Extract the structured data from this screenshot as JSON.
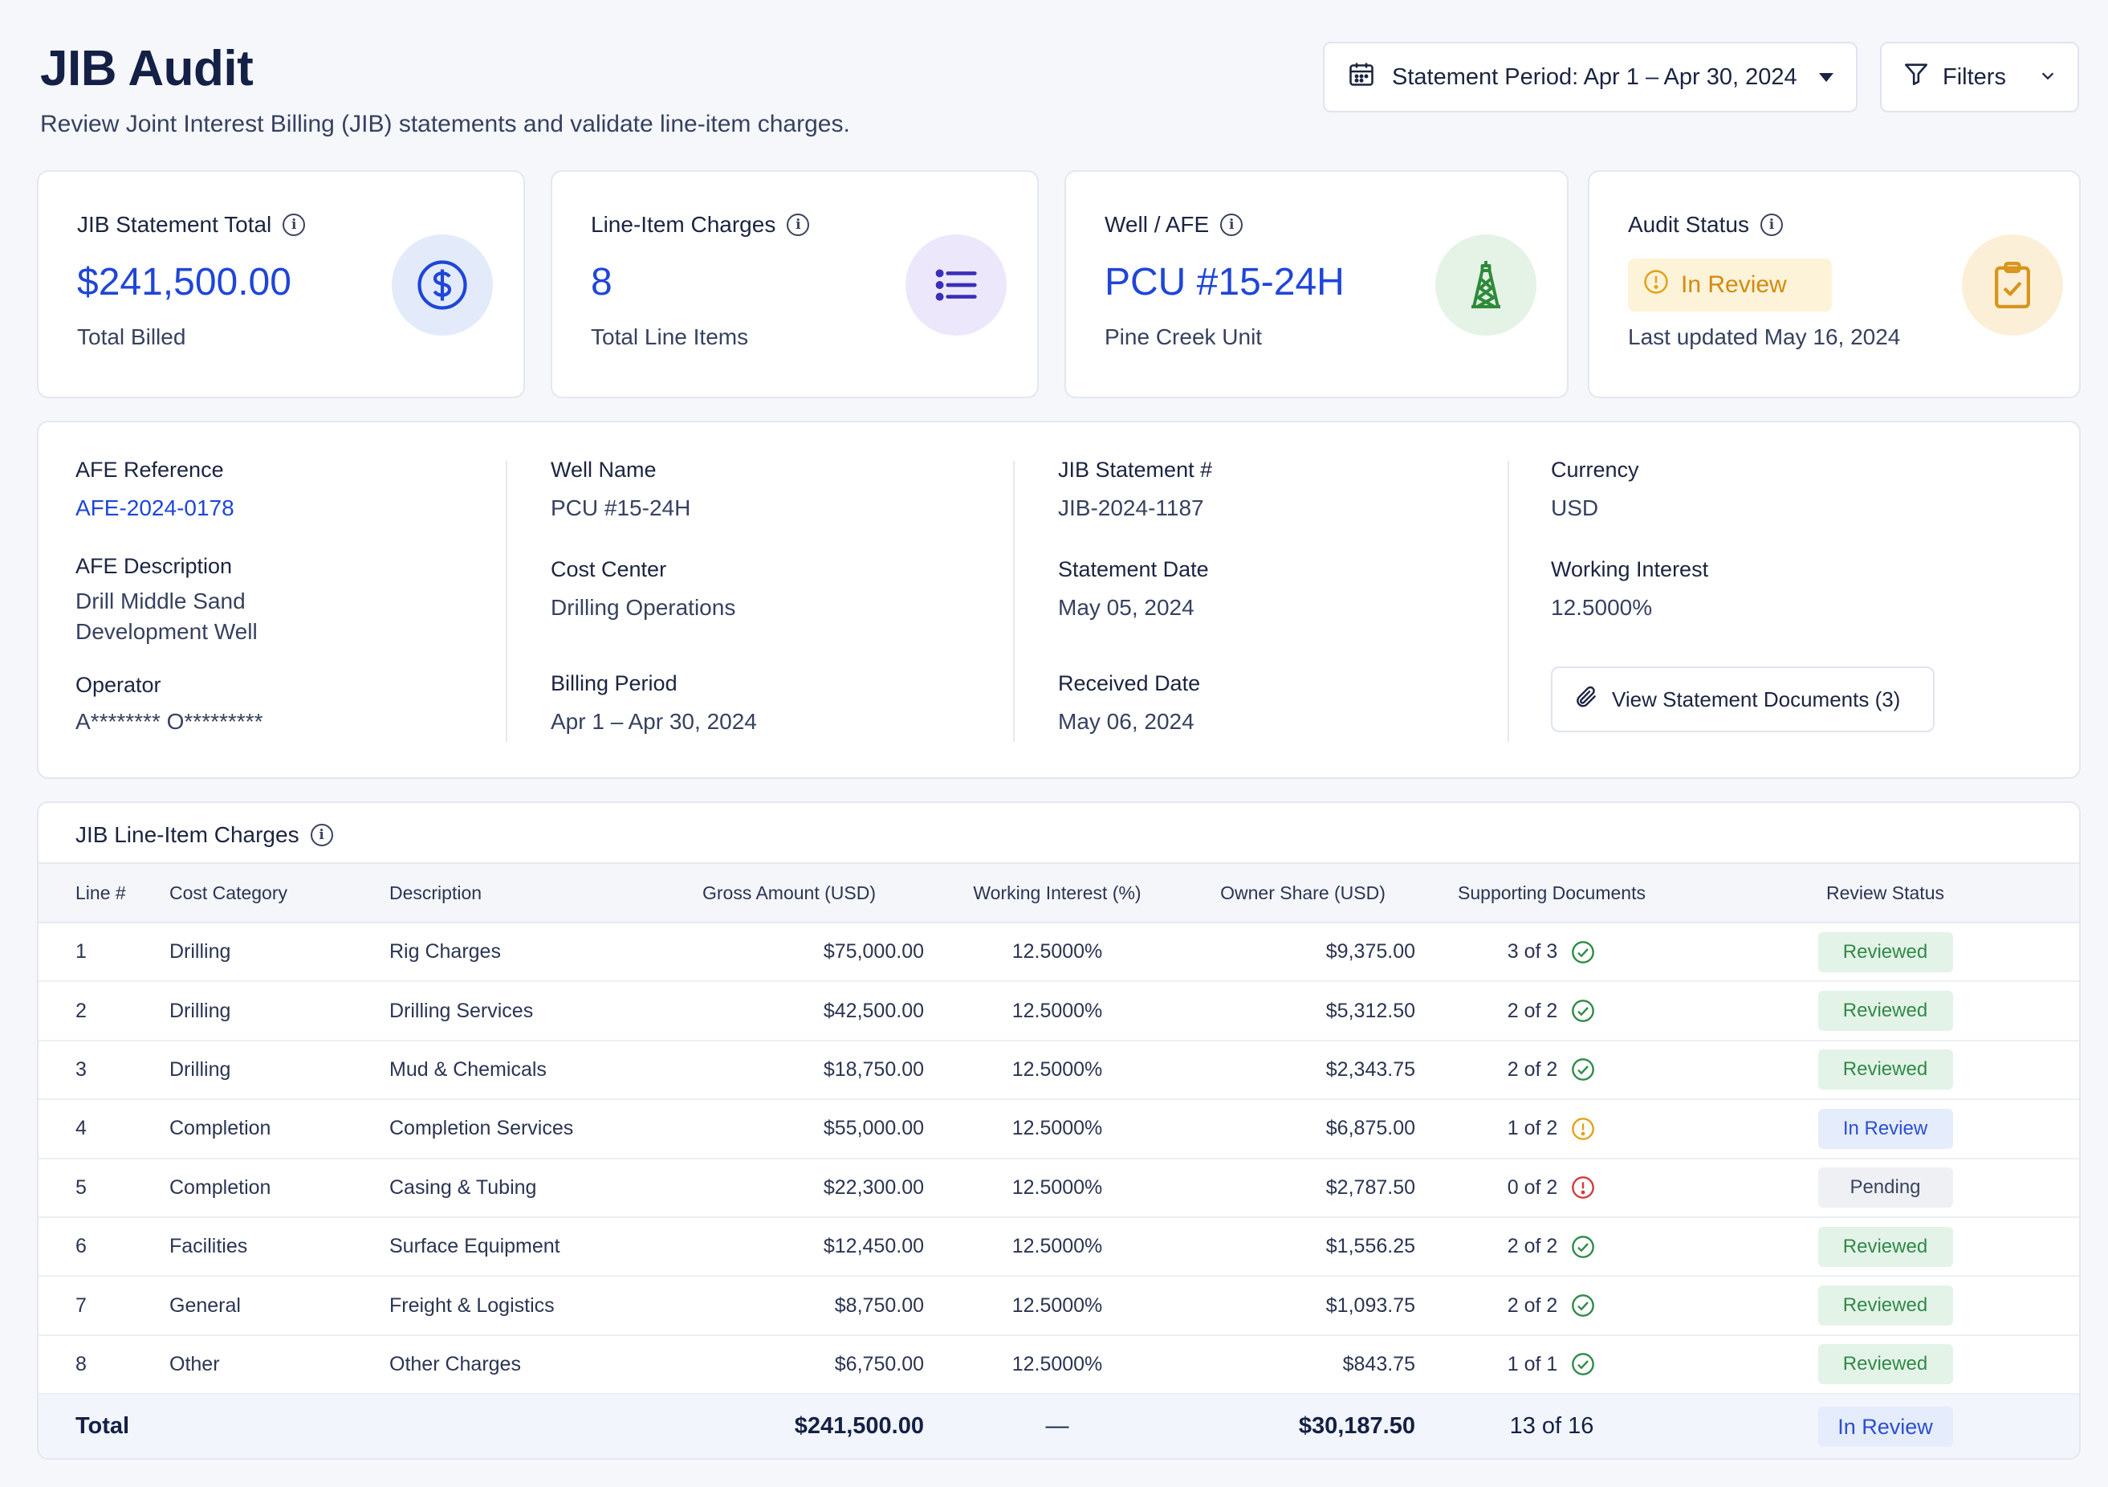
{
  "header": {
    "title": "JIB Audit",
    "subtitle": "Review Joint Interest Billing (JIB) statements and validate line-item charges.",
    "period_label": "Statement Period: Apr 1 – Apr 30, 2024",
    "filters_label": "Filters"
  },
  "cards": [
    {
      "label": "JIB Statement Total",
      "value": "$241,500.00",
      "sub": "Total Billed",
      "icon": "dollar-icon"
    },
    {
      "label": "Line-Item Charges",
      "value": "8",
      "sub": "Total Line Items",
      "icon": "list-icon"
    },
    {
      "label": "Well / AFE",
      "value": "PCU #15-24H",
      "sub": "Pine Creek Unit",
      "icon": "oil-derrick-icon"
    },
    {
      "label": "Audit Status",
      "value": "In Review",
      "sub": "Last updated May 16, 2024",
      "icon": "clipboard-check-icon"
    }
  ],
  "details": {
    "afe_reference_label": "AFE Reference",
    "afe_reference": "AFE-2024-0178",
    "afe_description_label": "AFE Description",
    "afe_description_1": "Drill Middle Sand",
    "afe_description_2": "Development Well",
    "operator_label": "Operator",
    "operator": "A******** O*********",
    "well_name_label": "Well Name",
    "well_name": "PCU #15-24H",
    "cost_center_label": "Cost Center",
    "cost_center": "Drilling Operations",
    "billing_period_label": "Billing Period",
    "billing_period": "Apr 1 – Apr 30, 2024",
    "jib_statement_label": "JIB Statement #",
    "jib_statement": "JIB-2024-1187",
    "statement_date_label": "Statement Date",
    "statement_date": "May 05, 2024",
    "received_date_label": "Received Date",
    "received_date": "May 06, 2024",
    "currency_label": "Currency",
    "currency": "USD",
    "working_interest_label": "Working Interest",
    "working_interest": "12.5000%",
    "documents_button": "View Statement Documents (3)"
  },
  "table": {
    "title": "JIB Line-Item Charges",
    "columns": [
      "Line #",
      "Cost Category",
      "Description",
      "Gross Amount (USD)",
      "Working Interest (%)",
      "Owner Share (USD)",
      "Supporting Documents",
      "Review Status"
    ],
    "rows": [
      {
        "line": "1",
        "category": "Drilling",
        "description": "Rig Charges",
        "gross": "$75,000.00",
        "wi": "12.5000%",
        "share": "$9,375.00",
        "docs": "3 of 3",
        "doc_state": "complete",
        "status": "Reviewed"
      },
      {
        "line": "2",
        "category": "Drilling",
        "description": "Drilling Services",
        "gross": "$42,500.00",
        "wi": "12.5000%",
        "share": "$5,312.50",
        "docs": "2 of 2",
        "doc_state": "complete",
        "status": "Reviewed"
      },
      {
        "line": "3",
        "category": "Drilling",
        "description": "Mud & Chemicals",
        "gross": "$18,750.00",
        "wi": "12.5000%",
        "share": "$2,343.75",
        "docs": "2 of 2",
        "doc_state": "complete",
        "status": "Reviewed"
      },
      {
        "line": "4",
        "category": "Completion",
        "description": "Completion Services",
        "gross": "$55,000.00",
        "wi": "12.5000%",
        "share": "$6,875.00",
        "docs": "1 of 2",
        "doc_state": "partial",
        "status": "In Review"
      },
      {
        "line": "5",
        "category": "Completion",
        "description": "Casing & Tubing",
        "gross": "$22,300.00",
        "wi": "12.5000%",
        "share": "$2,787.50",
        "docs": "0 of 2",
        "doc_state": "missing",
        "status": "Pending"
      },
      {
        "line": "6",
        "category": "Facilities",
        "description": "Surface Equipment",
        "gross": "$12,450.00",
        "wi": "12.5000%",
        "share": "$1,556.25",
        "docs": "2 of 2",
        "doc_state": "complete",
        "status": "Reviewed"
      },
      {
        "line": "7",
        "category": "General",
        "description": "Freight & Logistics",
        "gross": "$8,750.00",
        "wi": "12.5000%",
        "share": "$1,093.75",
        "docs": "2 of 2",
        "doc_state": "complete",
        "status": "Reviewed"
      },
      {
        "line": "8",
        "category": "Other",
        "description": "Other Charges",
        "gross": "$6,750.00",
        "wi": "12.5000%",
        "share": "$843.75",
        "docs": "1 of 1",
        "doc_state": "complete",
        "status": "Reviewed"
      }
    ],
    "total": {
      "label": "Total",
      "gross": "$241,500.00",
      "wi": "—",
      "share": "$30,187.50",
      "docs": "13 of 16",
      "status": "In Review"
    }
  },
  "colors": {
    "accent": "#1f46d8",
    "reviewed": "#2f8a49",
    "in_review": "#2b4fd0",
    "warning": "#e3a21a",
    "danger": "#d63a3a"
  }
}
